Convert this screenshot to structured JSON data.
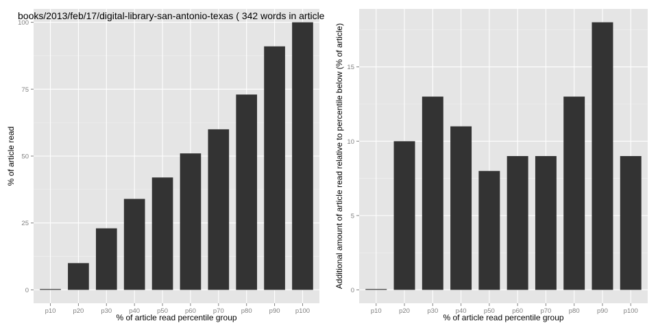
{
  "chart_data": [
    {
      "type": "bar",
      "title": "books/2013/feb/17/digital-library-san-antonio-texas ( 342 words in article",
      "xlabel": "% of article read percentile group",
      "ylabel": "% of article read",
      "categories": [
        "p10",
        "p20",
        "p30",
        "p40",
        "p50",
        "p60",
        "p70",
        "p80",
        "p90",
        "p100"
      ],
      "values": [
        0,
        10,
        23,
        34,
        42,
        51,
        60,
        73,
        91,
        100
      ],
      "yticks": [
        0,
        25,
        50,
        75,
        100
      ],
      "ylim": [
        -5,
        105
      ],
      "grid": true,
      "bar_color": "#333333",
      "panel_color": "#e5e5e5"
    },
    {
      "type": "bar",
      "title": "",
      "xlabel": "% of article read percentile group",
      "ylabel": "Additional amount of article read relative to percentile below (% of article)",
      "categories": [
        "p10",
        "p20",
        "p30",
        "p40",
        "p50",
        "p60",
        "p70",
        "p80",
        "p90",
        "p100"
      ],
      "values": [
        0,
        10,
        13,
        11,
        8,
        9,
        9,
        13,
        18,
        9
      ],
      "yticks": [
        0,
        5,
        10,
        15
      ],
      "ylim": [
        -0.9,
        18.9
      ],
      "grid": true,
      "bar_color": "#333333",
      "panel_color": "#e5e5e5"
    }
  ]
}
